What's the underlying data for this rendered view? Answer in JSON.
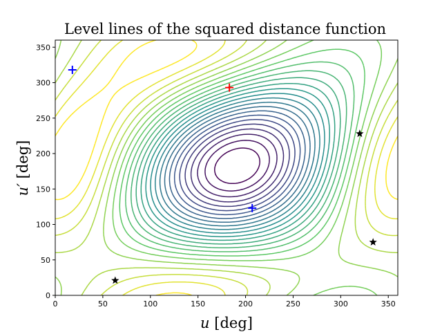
{
  "chart_data": {
    "type": "contour",
    "title": "Level lines of the squared distance function",
    "xlabel_var": "u",
    "xlabel_unit": " [deg]",
    "ylabel_var": "u′",
    "ylabel_unit": " [deg]",
    "xlim": [
      0,
      360
    ],
    "ylim": [
      0,
      360
    ],
    "xticks": [
      "0",
      "50",
      "100",
      "150",
      "200",
      "250",
      "300",
      "350"
    ],
    "yticks": [
      "0",
      "50",
      "100",
      "150",
      "200",
      "250",
      "300",
      "350"
    ],
    "colormap": "viridis",
    "grid": false,
    "maximum_marker": {
      "symbol": "+",
      "color": "#ff0000",
      "x": 183,
      "y": 293
    },
    "minimum_markers": [
      {
        "symbol": "+",
        "color": "#0000ff",
        "x": 18,
        "y": 318
      },
      {
        "symbol": "+",
        "color": "#0000ff",
        "x": 207,
        "y": 123
      }
    ],
    "saddle_markers": [
      {
        "symbol": "star",
        "color": "#000000",
        "x": 63,
        "y": 21
      },
      {
        "symbol": "star",
        "color": "#000000",
        "x": 320,
        "y": 228
      },
      {
        "symbol": "star",
        "color": "#000000",
        "x": 334,
        "y": 75
      }
    ]
  }
}
